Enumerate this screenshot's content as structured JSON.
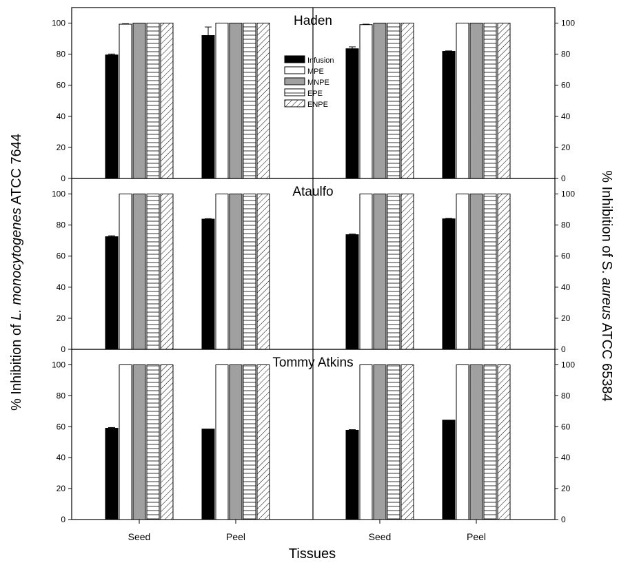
{
  "chart_data": {
    "type": "bar",
    "xlabel": "Tissues",
    "ylabel_left": {
      "prefix": "% Inhibition of ",
      "italic": "L. monocytogenes",
      "suffix": " ATCC 7644"
    },
    "ylabel_right": {
      "prefix": "% Inhibition of S. ",
      "italic": "aureus",
      "suffix": " ATCC 65384"
    },
    "categories": [
      "Seed",
      "Peel",
      "Seed",
      "Peel"
    ],
    "ylim": [
      0,
      100
    ],
    "yticks": [
      0,
      20,
      40,
      60,
      80,
      100
    ],
    "grid": false,
    "legend_position": "upper-center",
    "series_names": [
      "Infusion",
      "MPE",
      "MNPE",
      "EPE",
      "ENPE"
    ],
    "panels": [
      {
        "title": "Haden",
        "series": [
          {
            "name": "Infusion",
            "values": [
              79.5,
              92,
              83.5,
              81.8
            ],
            "errors": [
              0.6,
              5.5,
              1.2,
              0.3
            ]
          },
          {
            "name": "MPE",
            "values": [
              99.3,
              100,
              99,
              100
            ],
            "errors": [
              0.3,
              0,
              0.3,
              0
            ]
          },
          {
            "name": "MNPE",
            "values": [
              100,
              100,
              100,
              100
            ],
            "errors": [
              0,
              0,
              0,
              0
            ]
          },
          {
            "name": "EPE",
            "values": [
              100,
              100,
              100,
              100
            ],
            "errors": [
              0,
              0,
              0,
              0
            ]
          },
          {
            "name": "ENPE",
            "values": [
              100,
              100,
              100,
              100
            ],
            "errors": [
              0,
              0,
              0,
              0
            ]
          }
        ]
      },
      {
        "title": "Ataulfo",
        "series": [
          {
            "name": "Infusion",
            "values": [
              72.5,
              83.8,
              73.8,
              84
            ],
            "errors": [
              0.6,
              0.3,
              0.4,
              0.3
            ]
          },
          {
            "name": "MPE",
            "values": [
              100,
              100,
              100,
              100
            ],
            "errors": [
              0,
              0,
              0,
              0
            ]
          },
          {
            "name": "MNPE",
            "values": [
              100,
              100,
              100,
              100
            ],
            "errors": [
              0,
              0,
              0,
              0
            ]
          },
          {
            "name": "EPE",
            "values": [
              100,
              100,
              100,
              100
            ],
            "errors": [
              0,
              0,
              0,
              0
            ]
          },
          {
            "name": "ENPE",
            "values": [
              100,
              100,
              100,
              100
            ],
            "errors": [
              0,
              0,
              0,
              0
            ]
          }
        ]
      },
      {
        "title": "Tommy Atkins",
        "series": [
          {
            "name": "Infusion",
            "values": [
              59,
              58.5,
              57.7,
              64.3
            ],
            "errors": [
              0.5,
              0,
              0.4,
              0
            ]
          },
          {
            "name": "MPE",
            "values": [
              100,
              100,
              100,
              100
            ],
            "errors": [
              0,
              0,
              0,
              0
            ]
          },
          {
            "name": "MNPE",
            "values": [
              100,
              100,
              100,
              100
            ],
            "errors": [
              0,
              0,
              0,
              0
            ]
          },
          {
            "name": "EPE",
            "values": [
              100,
              100,
              100,
              100
            ],
            "errors": [
              0,
              0,
              0,
              0
            ]
          },
          {
            "name": "ENPE",
            "values": [
              100,
              100,
              100,
              100
            ],
            "errors": [
              0,
              0,
              0,
              0
            ]
          }
        ]
      }
    ]
  }
}
